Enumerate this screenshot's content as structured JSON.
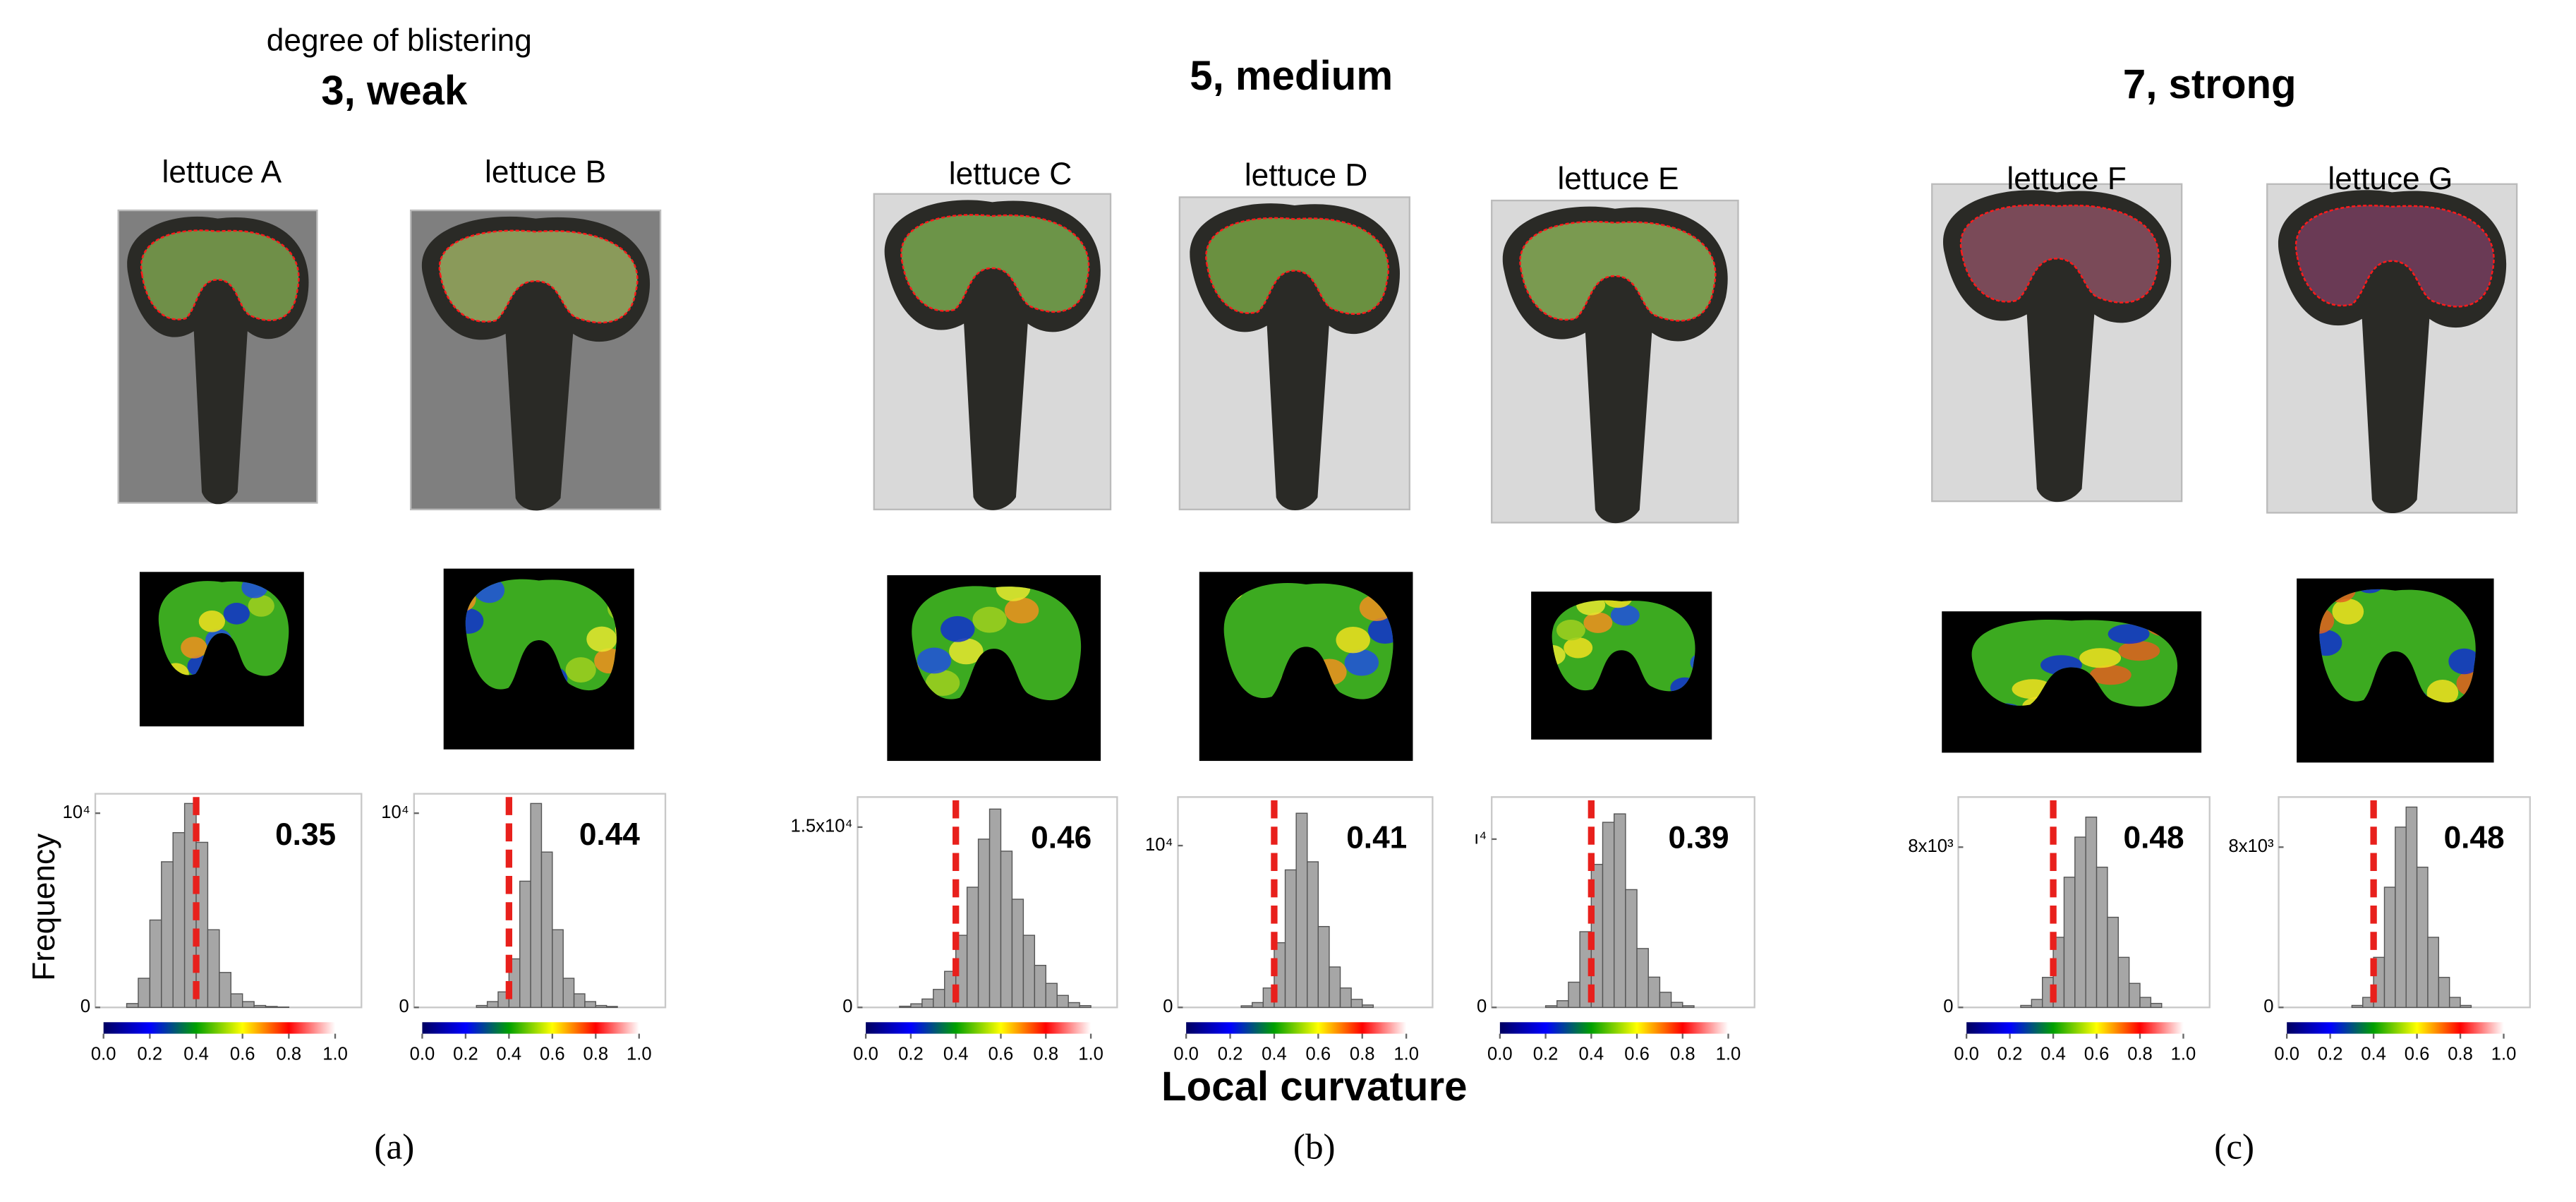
{
  "header": {
    "subtitle": "degree of blistering",
    "groups": [
      "3, weak",
      "5, medium",
      "7, strong"
    ],
    "x_label": "Local curvature",
    "y_label": "Frequency",
    "panel_labels": [
      "(a)",
      "(b)",
      "(c)"
    ]
  },
  "chart_data": [
    {
      "type": "histogram",
      "title": "lettuce A",
      "annotation": "0.35",
      "color": "#a6a6a6",
      "marker_line": 0.4,
      "marker_color": "#e8201c",
      "bins": [
        0,
        0.05,
        0.1,
        0.15,
        0.2,
        0.25,
        0.3,
        0.35,
        0.4,
        0.45,
        0.5,
        0.55,
        0.6,
        0.65,
        0.7,
        0.75,
        0.8,
        0.85,
        0.9,
        0.95,
        1.0
      ],
      "values": [
        0,
        0,
        200,
        1500,
        4500,
        7500,
        9000,
        10500,
        8500,
        4000,
        1800,
        700,
        300,
        100,
        50,
        20,
        0,
        0,
        0,
        0
      ],
      "xlim": [
        0,
        1
      ],
      "xticks": [
        {
          "value": 0,
          "label": "0.0"
        },
        {
          "value": 0.2,
          "label": "0.2"
        },
        {
          "value": 0.4,
          "label": "0.4"
        },
        {
          "value": 0.6,
          "label": "0.6"
        },
        {
          "value": 0.8,
          "label": "0.8"
        },
        {
          "value": 1,
          "label": "1.0"
        }
      ],
      "ylim": [
        0,
        11000
      ],
      "yticks": [
        0,
        {
          "value": 10000,
          "label": "10⁴"
        }
      ],
      "colormap": [
        "#000060",
        "#0000ff",
        "#00a000",
        "#ffff00",
        "#ff0000",
        "#ffffff"
      ]
    },
    {
      "type": "histogram",
      "title": "lettuce B",
      "annotation": "0.44",
      "color": "#a6a6a6",
      "marker_line": 0.4,
      "marker_color": "#e8201c",
      "bins": [
        0,
        0.05,
        0.1,
        0.15,
        0.2,
        0.25,
        0.3,
        0.35,
        0.4,
        0.45,
        0.5,
        0.55,
        0.6,
        0.65,
        0.7,
        0.75,
        0.8,
        0.85,
        0.9,
        0.95,
        1.0
      ],
      "values": [
        0,
        0,
        0,
        0,
        0,
        100,
        300,
        800,
        2500,
        6500,
        10500,
        8000,
        4000,
        1500,
        700,
        300,
        100,
        50,
        0,
        0
      ],
      "xlim": [
        0,
        1
      ],
      "xticks": [
        {
          "value": 0,
          "label": "0.0"
        },
        {
          "value": 0.2,
          "label": "0.2"
        },
        {
          "value": 0.4,
          "label": "0.4"
        },
        {
          "value": 0.6,
          "label": "0.6"
        },
        {
          "value": 0.8,
          "label": "0.8"
        },
        {
          "value": 1,
          "label": "1.0"
        }
      ],
      "ylim": [
        0,
        11000
      ],
      "yticks": [
        0,
        {
          "value": 10000,
          "label": "10⁴"
        }
      ],
      "colormap": [
        "#000060",
        "#0000ff",
        "#00a000",
        "#ffff00",
        "#ff0000",
        "#ffffff"
      ]
    },
    {
      "type": "histogram",
      "title": "lettuce C",
      "annotation": "0.46",
      "color": "#a6a6a6",
      "marker_line": 0.4,
      "marker_color": "#e8201c",
      "bins": [
        0,
        0.05,
        0.1,
        0.15,
        0.2,
        0.25,
        0.3,
        0.35,
        0.4,
        0.45,
        0.5,
        0.55,
        0.6,
        0.65,
        0.7,
        0.75,
        0.8,
        0.85,
        0.9,
        0.95,
        1.0
      ],
      "values": [
        0,
        0,
        0,
        100,
        300,
        700,
        1500,
        3000,
        6000,
        10000,
        14000,
        16500,
        13000,
        9000,
        6000,
        3500,
        2000,
        1000,
        400,
        150
      ],
      "xlim": [
        0,
        1
      ],
      "xticks": [
        {
          "value": 0,
          "label": "0.0"
        },
        {
          "value": 0.2,
          "label": "0.2"
        },
        {
          "value": 0.4,
          "label": "0.4"
        },
        {
          "value": 0.6,
          "label": "0.6"
        },
        {
          "value": 0.8,
          "label": "0.8"
        },
        {
          "value": 1,
          "label": "1.0"
        }
      ],
      "ylim": [
        0,
        17500
      ],
      "yticks": [
        0,
        {
          "value": 15000,
          "label": "1.5x10⁴"
        }
      ],
      "colormap": [
        "#000060",
        "#0000ff",
        "#00a000",
        "#ffff00",
        "#ff0000",
        "#ffffff"
      ]
    },
    {
      "type": "histogram",
      "title": "lettuce D",
      "annotation": "0.41",
      "color": "#a6a6a6",
      "marker_line": 0.4,
      "marker_color": "#e8201c",
      "bins": [
        0,
        0.05,
        0.1,
        0.15,
        0.2,
        0.25,
        0.3,
        0.35,
        0.4,
        0.45,
        0.5,
        0.55,
        0.6,
        0.65,
        0.7,
        0.75,
        0.8,
        0.85,
        0.9,
        0.95,
        1.0
      ],
      "values": [
        0,
        0,
        0,
        0,
        0,
        100,
        300,
        1200,
        4000,
        8500,
        12000,
        9000,
        5000,
        2500,
        1200,
        500,
        150,
        0,
        0,
        0
      ],
      "xlim": [
        0,
        1
      ],
      "xticks": [
        {
          "value": 0,
          "label": "0.0"
        },
        {
          "value": 0.2,
          "label": "0.2"
        },
        {
          "value": 0.4,
          "label": "0.4"
        },
        {
          "value": 0.6,
          "label": "0.6"
        },
        {
          "value": 0.8,
          "label": "0.8"
        },
        {
          "value": 1,
          "label": "1.0"
        }
      ],
      "ylim": [
        0,
        13000
      ],
      "yticks": [
        0,
        {
          "value": 10000,
          "label": "10⁴"
        }
      ],
      "colormap": [
        "#000060",
        "#0000ff",
        "#00a000",
        "#ffff00",
        "#ff0000",
        "#ffffff"
      ]
    },
    {
      "type": "histogram",
      "title": "lettuce E",
      "annotation": "0.39",
      "color": "#a6a6a6",
      "marker_line": 0.4,
      "marker_color": "#e8201c",
      "bins": [
        0,
        0.05,
        0.1,
        0.15,
        0.2,
        0.25,
        0.3,
        0.35,
        0.4,
        0.45,
        0.5,
        0.55,
        0.6,
        0.65,
        0.7,
        0.75,
        0.8,
        0.85,
        0.9,
        0.95,
        1.0
      ],
      "values": [
        0,
        0,
        0,
        0,
        100,
        400,
        1500,
        4500,
        8500,
        11000,
        11500,
        7000,
        3500,
        1800,
        900,
        300,
        100,
        0,
        0,
        0
      ],
      "xlim": [
        0,
        1
      ],
      "xticks": [
        {
          "value": 0,
          "label": "0.0"
        },
        {
          "value": 0.2,
          "label": "0.2"
        },
        {
          "value": 0.4,
          "label": "0.4"
        },
        {
          "value": 0.6,
          "label": "0.6"
        },
        {
          "value": 0.8,
          "label": "0.8"
        },
        {
          "value": 1,
          "label": "1.0"
        }
      ],
      "ylim": [
        0,
        12500
      ],
      "yticks": [
        0,
        {
          "value": 10000,
          "label": "ı⁴"
        }
      ],
      "colormap": [
        "#000060",
        "#0000ff",
        "#00a000",
        "#ffff00",
        "#ff0000",
        "#ffffff"
      ]
    },
    {
      "type": "histogram",
      "title": "lettuce F",
      "annotation": "0.48",
      "color": "#a6a6a6",
      "marker_line": 0.4,
      "marker_color": "#e8201c",
      "bins": [
        0,
        0.05,
        0.1,
        0.15,
        0.2,
        0.25,
        0.3,
        0.35,
        0.4,
        0.45,
        0.5,
        0.55,
        0.6,
        0.65,
        0.7,
        0.75,
        0.8,
        0.85,
        0.9,
        0.95,
        1.0
      ],
      "values": [
        0,
        0,
        0,
        0,
        0,
        100,
        400,
        1500,
        3500,
        6500,
        8500,
        9500,
        7000,
        4500,
        2500,
        1200,
        500,
        200,
        0,
        0
      ],
      "xlim": [
        0,
        1
      ],
      "xticks": [
        {
          "value": 0,
          "label": "0.0"
        },
        {
          "value": 0.2,
          "label": "0.2"
        },
        {
          "value": 0.4,
          "label": "0.4"
        },
        {
          "value": 0.6,
          "label": "0.6"
        },
        {
          "value": 0.8,
          "label": "0.8"
        },
        {
          "value": 1,
          "label": "1.0"
        }
      ],
      "ylim": [
        0,
        10500
      ],
      "yticks": [
        0,
        {
          "value": 8000,
          "label": "8x10³"
        }
      ],
      "colormap": [
        "#000060",
        "#0000ff",
        "#00a000",
        "#ffff00",
        "#ff0000",
        "#ffffff"
      ]
    },
    {
      "type": "histogram",
      "title": "lettuce G",
      "annotation": "0.48",
      "color": "#a6a6a6",
      "marker_line": 0.4,
      "marker_color": "#e8201c",
      "bins": [
        0,
        0.05,
        0.1,
        0.15,
        0.2,
        0.25,
        0.3,
        0.35,
        0.4,
        0.45,
        0.5,
        0.55,
        0.6,
        0.65,
        0.7,
        0.75,
        0.8,
        0.85,
        0.9,
        0.95,
        1.0
      ],
      "values": [
        0,
        0,
        0,
        0,
        0,
        0,
        100,
        500,
        2500,
        6000,
        9000,
        10000,
        7000,
        3500,
        1500,
        500,
        100,
        0,
        0,
        0
      ],
      "xlim": [
        0,
        1
      ],
      "xticks": [
        {
          "value": 0,
          "label": "0.0"
        },
        {
          "value": 0.2,
          "label": "0.2"
        },
        {
          "value": 0.4,
          "label": "0.4"
        },
        {
          "value": 0.6,
          "label": "0.6"
        },
        {
          "value": 0.8,
          "label": "0.8"
        },
        {
          "value": 1,
          "label": "1.0"
        }
      ],
      "ylim": [
        0,
        10500
      ],
      "yticks": [
        0,
        {
          "value": 8000,
          "label": "8x10³"
        }
      ],
      "colormap": [
        "#000060",
        "#0000ff",
        "#00a000",
        "#ffff00",
        "#ff0000",
        "#ffffff"
      ]
    }
  ]
}
